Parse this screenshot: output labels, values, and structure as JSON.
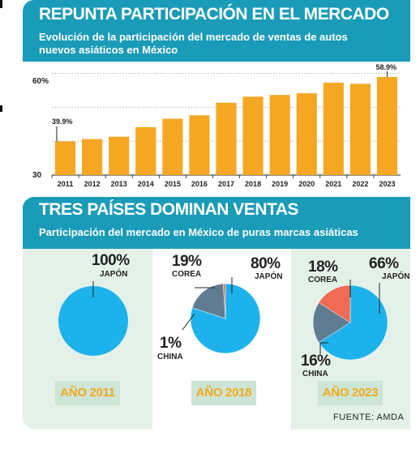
{
  "bar_section": {
    "title": "REPUNTA PARTICIPACIÓN EN EL MERCADO",
    "subtitle_line1": "Evolución de la participación del mercado de ventas de autos",
    "subtitle_line2": "nuevos asiáticos en México",
    "y_tick_top": "60%",
    "y_tick_bottom": "30",
    "label_first": "39.9%",
    "label_last": "58.9%"
  },
  "pie_section": {
    "title": "TRES PAÍSES DOMINAN VENTAS",
    "subtitle": "Participación del mercado en México de puras marcas asiáticas",
    "source": "FUENTE: AMDA",
    "pies": [
      {
        "year_label": "AÑO 2011",
        "labels": [
          {
            "pct": "100%",
            "country": "JAPÓN"
          }
        ]
      },
      {
        "year_label": "AÑO 2018",
        "labels": [
          {
            "pct": "80%",
            "country": "JAPÓN"
          },
          {
            "pct": "19%",
            "country": "COREA"
          },
          {
            "pct": "1%",
            "country": "CHINA"
          }
        ]
      },
      {
        "year_label": "AÑO 2023",
        "labels": [
          {
            "pct": "66%",
            "country": "JAPÓN"
          },
          {
            "pct": "18%",
            "country": "COREA"
          },
          {
            "pct": "16%",
            "country": "CHINA"
          }
        ]
      }
    ]
  },
  "colors": {
    "bar": "#f5a623",
    "japon": "#1eb2ec",
    "corea": "#5f7c93",
    "china": "#ef6b53",
    "header": "#1a9bb8",
    "panel": "#e4f1e9"
  },
  "chart_data": [
    {
      "type": "bar",
      "title": "REPUNTA PARTICIPACIÓN EN EL MERCADO",
      "subtitle": "Evolución de la participación del mercado de ventas de autos nuevos asiáticos en México",
      "categories": [
        "2011",
        "2012",
        "2013",
        "2014",
        "2015",
        "2016",
        "2017",
        "2018",
        "2019",
        "2020",
        "2021",
        "2022",
        "2023"
      ],
      "values": [
        39.9,
        40.6,
        41.3,
        44.1,
        46.6,
        47.6,
        51.3,
        53.1,
        53.6,
        54.1,
        57.2,
        56.9,
        58.9
      ],
      "data_labels": {
        "2011": "39.9%",
        "2023": "58.9%"
      },
      "ylim": [
        30,
        62
      ],
      "y_ticks": [
        30,
        60
      ],
      "grid": true
    },
    {
      "type": "pie",
      "title": "TRES PAÍSES DOMINAN VENTAS",
      "subtitle": "Participación del mercado en México de puras marcas asiáticas",
      "charts": [
        {
          "label": "AÑO 2011",
          "slices": [
            {
              "name": "JAPÓN",
              "value": 100
            }
          ]
        },
        {
          "label": "AÑO 2018",
          "slices": [
            {
              "name": "JAPÓN",
              "value": 80
            },
            {
              "name": "COREA",
              "value": 19
            },
            {
              "name": "CHINA",
              "value": 1
            }
          ]
        },
        {
          "label": "AÑO 2023",
          "slices": [
            {
              "name": "JAPÓN",
              "value": 66
            },
            {
              "name": "COREA",
              "value": 18
            },
            {
              "name": "CHINA",
              "value": 16
            }
          ]
        }
      ]
    }
  ]
}
